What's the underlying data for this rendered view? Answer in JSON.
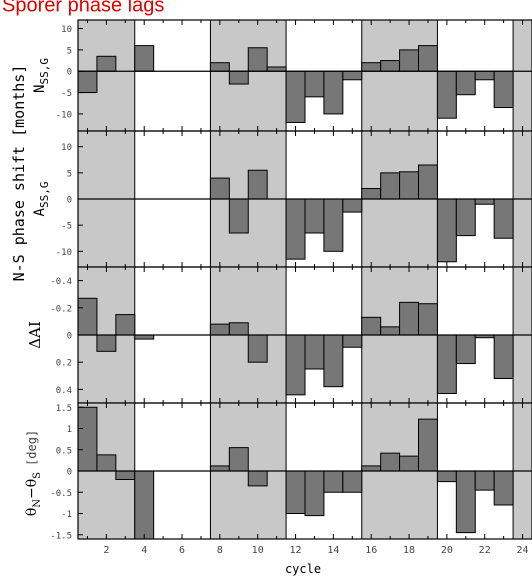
{
  "title": "Spörer phase lags",
  "colors": {
    "title": "#e00000",
    "shade": "#c8c8c8",
    "bar": "#777777",
    "bar_edge": "#000000",
    "frame": "#000000"
  },
  "x_axis_label": "cycle",
  "shared_y_label": "N-S phase shift [months]",
  "chart_data": [
    {
      "type": "bar",
      "ylabel": "N_SS,G",
      "ylabel_main": "N",
      "ylabel_sub": "SS,G",
      "ylim": [
        -14,
        12
      ],
      "yticks": [
        "10",
        "5",
        "0",
        "-5",
        "-10"
      ],
      "ytick_values": [
        10,
        5,
        0,
        -5,
        -10
      ],
      "x": [
        1,
        2,
        3,
        4,
        8,
        9,
        10,
        11,
        12,
        13,
        14,
        15,
        16,
        17,
        18,
        19,
        20,
        21,
        22,
        23
      ],
      "values": [
        -5,
        3.5,
        0,
        6,
        2,
        -3,
        5.5,
        1,
        -12,
        -6,
        -10,
        -2,
        2,
        2.5,
        5,
        6,
        -11,
        -5.5,
        -2,
        -8.5
      ]
    },
    {
      "type": "bar",
      "ylabel": "A_SS,G",
      "ylabel_main": "A",
      "ylabel_sub": "SS,G",
      "ylim": [
        -13,
        13
      ],
      "yticks": [
        "10",
        "5",
        "0",
        "-5",
        "-10"
      ],
      "ytick_values": [
        10,
        5,
        0,
        -5,
        -10
      ],
      "x": [
        8,
        9,
        10,
        12,
        13,
        14,
        15,
        16,
        17,
        18,
        19,
        20,
        21,
        22,
        23
      ],
      "values": [
        4,
        -6.5,
        5.5,
        -11.5,
        -6.5,
        -10,
        -2.5,
        2,
        5,
        5.2,
        6.5,
        -12,
        -7,
        -1,
        -7.5
      ]
    },
    {
      "type": "bar",
      "ylabel": "ΔAI",
      "ylim": [
        0.5,
        -0.5
      ],
      "inverted": true,
      "yticks": [
        "-0.4",
        "-0.2",
        "0",
        "0.2",
        "0.4"
      ],
      "ytick_values": [
        -0.4,
        -0.2,
        0,
        0.2,
        0.4
      ],
      "x": [
        1,
        2,
        3,
        4,
        8,
        9,
        10,
        12,
        13,
        14,
        15,
        16,
        17,
        18,
        19,
        20,
        21,
        22,
        23
      ],
      "values": [
        -0.27,
        0.12,
        -0.15,
        0.03,
        -0.08,
        -0.09,
        0.2,
        0.44,
        0.25,
        0.38,
        0.09,
        -0.13,
        -0.06,
        -0.24,
        -0.23,
        0.43,
        0.21,
        0.02,
        0.32
      ]
    },
    {
      "type": "bar",
      "ylabel": "θ_N−θ_S [deg]",
      "ylabel_theta1": "θ",
      "ylabel_sub1": "N",
      "ylabel_theta2": "−θ",
      "ylabel_sub2": "S",
      "ylabel_unit": "[deg]",
      "ylim": [
        -1.6,
        1.6
      ],
      "yticks": [
        "1.5",
        "1",
        "0.5",
        "0",
        "-0.5",
        "-1",
        "-1.5"
      ],
      "ytick_values": [
        1.5,
        1,
        0.5,
        0,
        -0.5,
        -1,
        -1.5
      ],
      "x": [
        1,
        2,
        3,
        4,
        8,
        9,
        10,
        12,
        13,
        14,
        15,
        16,
        17,
        18,
        19,
        20,
        21,
        22,
        23
      ],
      "values": [
        1.5,
        0.38,
        -0.2,
        -1.65,
        0.12,
        0.55,
        -0.35,
        -1.0,
        -1.05,
        -0.5,
        -0.5,
        0.12,
        0.42,
        0.35,
        1.22,
        -0.25,
        -1.45,
        -0.45,
        -0.8
      ]
    }
  ],
  "xaxis": {
    "xlim": [
      0.5,
      24.5
    ],
    "ticks": [
      "2",
      "4",
      "6",
      "8",
      "10",
      "12",
      "14",
      "16",
      "18",
      "20",
      "22",
      "24"
    ],
    "tick_values": [
      2,
      4,
      6,
      8,
      10,
      12,
      14,
      16,
      18,
      20,
      22,
      24
    ]
  },
  "shaded_ranges": [
    [
      0.5,
      3.5
    ],
    [
      7.5,
      11.5
    ],
    [
      15.5,
      19.5
    ],
    [
      23.5,
      24.5
    ]
  ]
}
